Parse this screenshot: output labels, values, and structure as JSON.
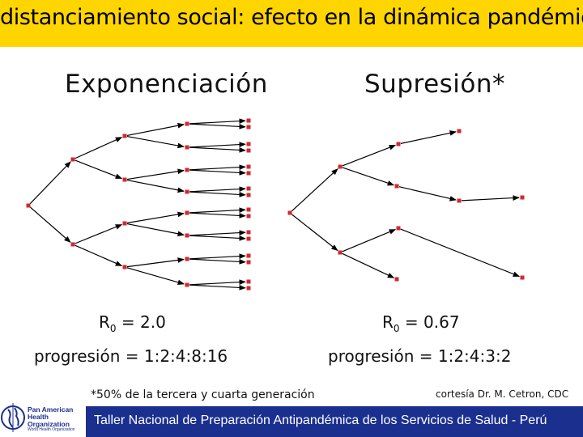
{
  "title": "distanciamiento social: efecto en la dinámica pandémica",
  "left": {
    "heading": "Exponenciación",
    "r0_label": "R",
    "r0_sub": "0",
    "r0_value": " = 2.0",
    "progression": "progresión = 1:2:4:8:16"
  },
  "right": {
    "heading": "Supresión*",
    "r0_label": "R",
    "r0_sub": "0",
    "r0_value": " = 0.67",
    "progression": "progresión = 1:2:4:3:2"
  },
  "footnote": "*50% de la tercera y cuarta generación",
  "credit": "cortesía Dr. M. Cetron, CDC",
  "bottom_banner": "Taller Nacional de Preparación Antipandémica de los Servicios de Salud - Perú",
  "logo": {
    "line1": "Pan American",
    "line2": "Health",
    "line3": "Organization",
    "small": "World Health Organization"
  },
  "colors": {
    "title_bar": "#ffd500",
    "bottom_bar": "#1b2f8f",
    "node": "#d0282e",
    "edge": "#000000"
  }
}
